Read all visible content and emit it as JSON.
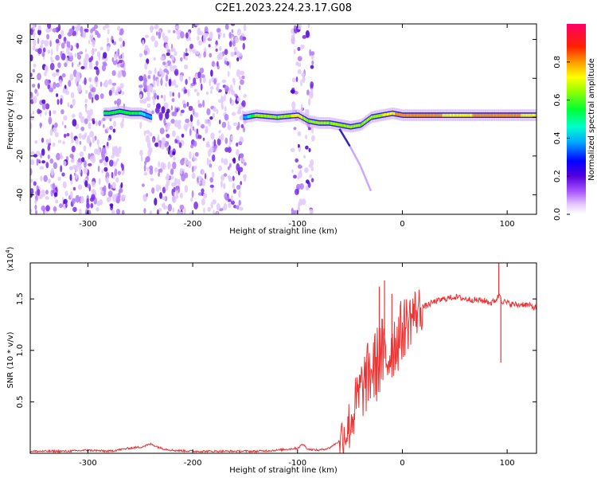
{
  "title": "C2E1.2023.224.23.17.G08",
  "chart_data": [
    {
      "type": "heatmap",
      "xlabel": "Height of straight line (km)",
      "ylabel": "Frequency (Hz)",
      "xlim": [
        -355,
        128
      ],
      "ylim": [
        -50,
        48
      ],
      "x_ticks": [
        -300,
        -200,
        -100,
        0,
        100
      ],
      "y_ticks": [
        -40,
        -20,
        0,
        20,
        40
      ],
      "x_tick_labels": [
        "-300",
        "-200",
        "-100",
        "0",
        "100"
      ],
      "y_tick_labels": [
        "-40",
        "-20",
        "0",
        "20",
        "40"
      ],
      "colorbar": {
        "label": "Normalized spectral amplitude",
        "range": [
          0,
          1
        ],
        "ticks": [
          0.0,
          0.2,
          0.4,
          0.6,
          0.8
        ],
        "tick_labels": [
          "0.0",
          "0.2",
          "0.4",
          "0.6",
          "0.8"
        ],
        "colormap": [
          "#ffffff",
          "#cc66ff",
          "#6600cc",
          "#0000ff",
          "#00ccff",
          "#00ff66",
          "#ffff00",
          "#ff6600",
          "#ff0000",
          "#ff0066"
        ]
      },
      "noise_regions": [
        {
          "x": [
            -355,
            -265
          ],
          "density": 0.9
        },
        {
          "x": [
            -250,
            -150
          ],
          "density": 0.85
        },
        {
          "x": [
            -105,
            -85
          ],
          "density": 0.7
        }
      ],
      "ridge": {
        "x": [
          -285,
          -280,
          -270,
          -260,
          -250,
          -240,
          -150,
          -140,
          -120,
          -100,
          -90,
          -80,
          -70,
          -60,
          -50,
          -40,
          -30,
          -20,
          -10,
          0,
          20,
          50,
          90,
          128
        ],
        "y": [
          2,
          2,
          3,
          2,
          2,
          0,
          0,
          1,
          0,
          1,
          -2,
          -3,
          -3,
          -4,
          -5,
          -4,
          0,
          1,
          2,
          1,
          1,
          1,
          1,
          1
        ],
        "amplitude": [
          0.5,
          0.55,
          0.55,
          0.55,
          0.45,
          0.3,
          0.35,
          0.6,
          0.55,
          0.7,
          0.55,
          0.6,
          0.55,
          0.65,
          0.6,
          0.55,
          0.6,
          0.65,
          0.7,
          0.8,
          0.75,
          0.7,
          0.75,
          0.7
        ]
      },
      "tail": {
        "x": [
          -60,
          -50,
          -40,
          -30
        ],
        "y": [
          -6,
          -15,
          -25,
          -38
        ]
      },
      "line_color": "#000000"
    },
    {
      "type": "line",
      "xlabel": "Height of straight line (km)",
      "ylabel": "SNR (10 * v/v)",
      "scale_label": "(x10",
      "scale_exp": "4",
      "xlim": [
        -355,
        128
      ],
      "ylim": [
        0,
        1.85
      ],
      "x_ticks": [
        -300,
        -200,
        -100,
        0,
        100
      ],
      "y_ticks": [
        0.5,
        1.0,
        1.5
      ],
      "x_tick_labels": [
        "-300",
        "-200",
        "-100",
        "0",
        "100"
      ],
      "y_tick_labels": [
        "0.5",
        "1.0",
        "1.5"
      ],
      "color": "#ee3333",
      "series": [
        {
          "x": [
            -355,
            -340,
            -320,
            -300,
            -280,
            -260,
            -250,
            -240,
            -230,
            -220,
            -200,
            -180,
            -160,
            -140,
            -120,
            -100,
            -95,
            -90,
            -80,
            -70,
            -60,
            -50,
            -45,
            -40,
            -35,
            -30,
            -25,
            -20,
            -15,
            -10,
            -5,
            0,
            10,
            20,
            30,
            40,
            50,
            60,
            70,
            80,
            85,
            90,
            93,
            95,
            100,
            110,
            115,
            120,
            128
          ],
          "y": [
            0.02,
            0.02,
            0.02,
            0.03,
            0.02,
            0.05,
            0.06,
            0.09,
            0.05,
            0.03,
            0.02,
            0.02,
            0.02,
            0.02,
            0.03,
            0.05,
            0.09,
            0.04,
            0.03,
            0.05,
            0.12,
            0.28,
            0.45,
            0.6,
            0.7,
            0.8,
            0.85,
            0.95,
            0.9,
            1.05,
            1.1,
            1.2,
            1.35,
            1.42,
            1.47,
            1.5,
            1.52,
            1.5,
            1.49,
            1.48,
            1.46,
            1.5,
            1.55,
            1.48,
            1.46,
            1.44,
            1.45,
            1.44,
            1.41
          ]
        }
      ],
      "spikes": [
        {
          "x": -22,
          "y": 1.62
        },
        {
          "x": -17,
          "y": 1.68
        },
        {
          "x": -10,
          "y": 1.55
        },
        {
          "x": 92,
          "y": 1.85
        },
        {
          "x": 94,
          "y": 0.88
        }
      ]
    }
  ]
}
